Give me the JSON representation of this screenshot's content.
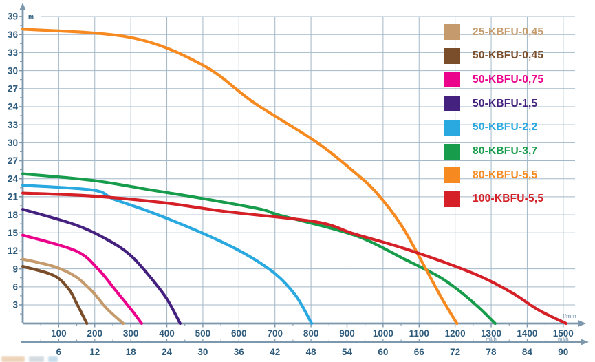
{
  "chart_data": {
    "type": "line",
    "title": "",
    "y_axis": {
      "unit": "m",
      "labels_top_to_bottom": [
        "39",
        "36",
        "33",
        "30",
        "27",
        "24",
        "33",
        "30",
        "27",
        "24",
        "21",
        "18",
        "15",
        "12",
        "9",
        "6",
        "3"
      ]
    },
    "x_axis_primary": {
      "unit": "l/min",
      "tick_labels": [
        "100",
        "200",
        "300",
        "400",
        "500",
        "600",
        "700",
        "800",
        "900",
        "1000",
        "1100",
        "1200",
        "1300",
        "1400",
        "1500"
      ]
    },
    "x_axis_secondary": {
      "unit": "m³/h",
      "tick_labels": [
        "6",
        "12",
        "18",
        "24",
        "30",
        "36",
        "42",
        "48",
        "54",
        "60",
        "66",
        "72",
        "78",
        "84",
        "90"
      ],
      "unit_label_under_primary_ticks": [
        "1300",
        "1500"
      ]
    },
    "legend_position": "top-right",
    "grid": true,
    "series": [
      {
        "name": "25-KBFU-0,45",
        "color": "#C59B6D",
        "points": [
          [
            0,
            10.7
          ],
          [
            86,
            9.5
          ],
          [
            147,
            7.8
          ],
          [
            195,
            5.2
          ],
          [
            233,
            2.5
          ],
          [
            279,
            0
          ]
        ]
      },
      {
        "name": "50-KBFU-0,45",
        "color": "#7A4E2B",
        "points": [
          [
            0,
            9.5
          ],
          [
            86,
            8.0
          ],
          [
            128,
            5.7
          ],
          [
            151,
            3.2
          ],
          [
            178,
            0
          ]
        ]
      },
      {
        "name": "50-KBFU-0,75",
        "color": "#EB038C",
        "points": [
          [
            0,
            14.7
          ],
          [
            147,
            12.1
          ],
          [
            210,
            9.0
          ],
          [
            258,
            5.5
          ],
          [
            304,
            2.1
          ],
          [
            330,
            0
          ]
        ]
      },
      {
        "name": "50-KBFU-1,5",
        "color": "#45217F",
        "points": [
          [
            0,
            19.0
          ],
          [
            147,
            16.4
          ],
          [
            239,
            13.8
          ],
          [
            300,
            11.3
          ],
          [
            357,
            7.5
          ],
          [
            401,
            4.0
          ],
          [
            437,
            0
          ]
        ]
      },
      {
        "name": "50-KBFU-2,2",
        "color": "#2AA9E0",
        "points": [
          [
            0,
            23.0
          ],
          [
            195,
            22.2
          ],
          [
            252,
            20.7
          ],
          [
            357,
            18.5
          ],
          [
            504,
            14.9
          ],
          [
            611,
            11.8
          ],
          [
            700,
            8.3
          ],
          [
            758,
            4.6
          ],
          [
            802,
            0
          ]
        ]
      },
      {
        "name": "80-KBFU-3,7",
        "color": "#179C4B",
        "points": [
          [
            0,
            24.9
          ],
          [
            195,
            23.8
          ],
          [
            357,
            22.2
          ],
          [
            510,
            20.7
          ],
          [
            662,
            19.0
          ],
          [
            714,
            18.0
          ],
          [
            920,
            14.7
          ],
          [
            1063,
            10.6
          ],
          [
            1155,
            7.8
          ],
          [
            1210,
            5.5
          ],
          [
            1267,
            2.6
          ],
          [
            1311,
            0
          ]
        ]
      },
      {
        "name": "80-KBFU-5,5",
        "color": "#F6891F",
        "points": [
          [
            0,
            49.0
          ],
          [
            300,
            47.6
          ],
          [
            500,
            43.0
          ],
          [
            643,
            36.7
          ],
          [
            815,
            30.2
          ],
          [
            920,
            25.2
          ],
          [
            981,
            21.8
          ],
          [
            1050,
            16.4
          ],
          [
            1115,
            9.5
          ],
          [
            1159,
            4.6
          ],
          [
            1205,
            0
          ]
        ]
      },
      {
        "name": "100-KBFU-5,5",
        "color": "#D42026",
        "points": [
          [
            0,
            21.7
          ],
          [
            195,
            21.2
          ],
          [
            391,
            20.1
          ],
          [
            567,
            18.6
          ],
          [
            815,
            16.9
          ],
          [
            920,
            14.9
          ],
          [
            1063,
            12.4
          ],
          [
            1248,
            8.4
          ],
          [
            1355,
            5.2
          ],
          [
            1430,
            2.3
          ],
          [
            1508,
            0
          ]
        ]
      }
    ]
  },
  "colors": {
    "grid": "#A3B8C8",
    "axis": "#7D97AC",
    "tick_text": "#2E5B7C",
    "unit_text": "#8FA6BA",
    "background": "#FFFFFF"
  }
}
